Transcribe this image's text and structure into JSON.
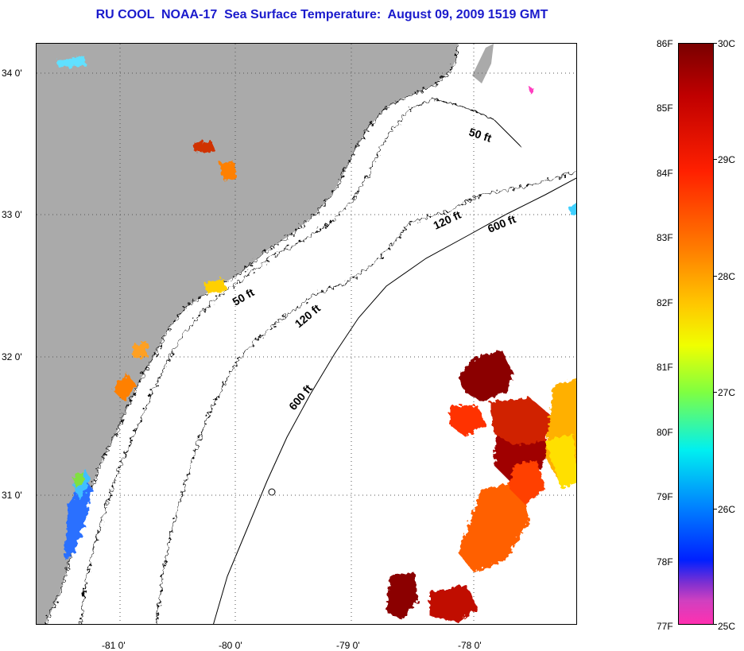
{
  "title": "RU COOL  NOAA-17  Sea Surface Temperature:  August 09, 2009 1519 GMT",
  "y_ticks": [
    "34 0'",
    "33 0'",
    "32 0'",
    "31 0'"
  ],
  "x_ticks": [
    "-81 0'",
    "-80 0'",
    "-79 0'",
    "-78 0'"
  ],
  "contour_labels": [
    "50 ft",
    "120 ft",
    "600 ft",
    "50 ft",
    "120 ft",
    "600 ft"
  ],
  "colorbar": {
    "fahrenheit": [
      "86F",
      "85F",
      "84F",
      "83F",
      "82F",
      "81F",
      "80F",
      "79F",
      "78F",
      "77F"
    ],
    "celsius": [
      "30C",
      "29C",
      "28C",
      "27C",
      "26C",
      "25C"
    ]
  },
  "colors": {
    "land": "#aaaaaa",
    "title": "#1a1acc",
    "hot": "#8b0000",
    "warm": "#ff4000",
    "mid": "#ffd000",
    "cool": "#00d0ff",
    "cold": "#0050ff"
  },
  "icons": [
    "land-mass",
    "sst-patch",
    "bathymetry-contour"
  ]
}
